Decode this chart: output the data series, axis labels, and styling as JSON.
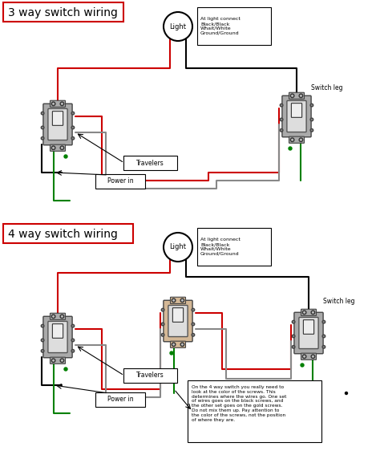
{
  "title_3way": "3 way switch wiring",
  "title_4way": "4 way switch wiring",
  "bg_color": "#ffffff",
  "title_box_color": "#cc0000",
  "title_text_color": "#000000",
  "switch_gray": "#aaaaaa",
  "switch_light_gray": "#cccccc",
  "switch_beige": "#d4b896",
  "wire_black": "#000000",
  "wire_red": "#cc0000",
  "wire_white": "#cccccc",
  "wire_green": "#008000",
  "wire_gray": "#888888",
  "annotation_3way_light": "At light connect\nBlack/Black\nWhait/White\nGround/Ground",
  "annotation_4way_light": "At light connect\nBlack/Black\nWhait/White\nGround/Ground",
  "label_travelers": "Travelers",
  "label_power_in": "Power in",
  "label_switch_leg": "Switch leg",
  "label_light": "Light",
  "label_4way_note": "On the 4 way switch you really need to\nlook at the color of the screws. This\ndetermines where the wires go. One set\nof wires goes on the black screws, and\nthe other set goes on the gold screws.\nDo not mix them up. Pay attention to\nthe color of the screws, not the position\nof where they are.",
  "dot_color": "#008000"
}
